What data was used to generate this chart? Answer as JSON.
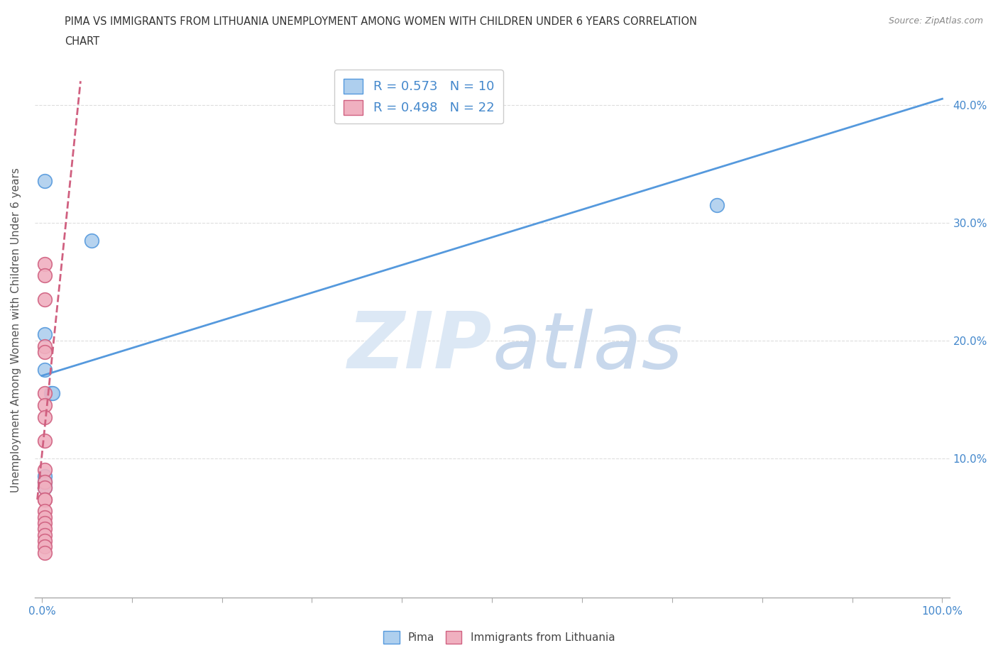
{
  "title_line1": "PIMA VS IMMIGRANTS FROM LITHUANIA UNEMPLOYMENT AMONG WOMEN WITH CHILDREN UNDER 6 YEARS CORRELATION",
  "title_line2": "CHART",
  "source": "Source: ZipAtlas.com",
  "ylabel": "Unemployment Among Women with Children Under 6 years",
  "watermark": "ZIPatlas",
  "pima_R": 0.573,
  "pima_N": 10,
  "lithuania_R": 0.498,
  "lithuania_N": 22,
  "pima_color": "#aecfee",
  "pima_line_color": "#5599dd",
  "lithuania_color": "#f0b0c0",
  "lithuania_line_color": "#d06080",
  "pima_scatter_x": [
    0.003,
    0.055,
    0.003,
    0.003,
    0.01,
    0.012,
    0.003,
    0.003,
    0.75,
    0.003
  ],
  "pima_scatter_y": [
    0.335,
    0.285,
    0.205,
    0.175,
    0.155,
    0.155,
    0.085,
    0.075,
    0.315,
    0.08
  ],
  "lithuania_scatter_x": [
    0.003,
    0.003,
    0.003,
    0.003,
    0.003,
    0.003,
    0.003,
    0.003,
    0.003,
    0.003,
    0.003,
    0.003,
    0.003,
    0.003,
    0.003,
    0.003,
    0.003,
    0.003,
    0.003,
    0.003,
    0.003,
    0.003
  ],
  "lithuania_scatter_y": [
    0.265,
    0.255,
    0.235,
    0.195,
    0.19,
    0.155,
    0.145,
    0.135,
    0.115,
    0.09,
    0.08,
    0.075,
    0.065,
    0.065,
    0.055,
    0.05,
    0.045,
    0.04,
    0.035,
    0.03,
    0.025,
    0.02
  ],
  "pima_line_x": [
    0.0,
    1.0
  ],
  "pima_line_y": [
    0.17,
    0.405
  ],
  "lithuania_line_x": [
    -0.005,
    0.043
  ],
  "lithuania_line_y": [
    0.065,
    0.42
  ],
  "xmin": -0.008,
  "xmax": 1.008,
  "ymin": -0.018,
  "ymax": 0.435,
  "xticks_left": [
    0.0
  ],
  "xticks_right": [
    1.0
  ],
  "xtick_label_left": "0.0%",
  "xtick_label_right": "100.0%",
  "yticks": [
    0.1,
    0.2,
    0.3,
    0.4
  ],
  "ytick_labels": [
    "10.0%",
    "20.0%",
    "30.0%",
    "40.0%"
  ],
  "background_color": "#ffffff",
  "grid_color": "#dddddd",
  "grid_linestyle": "--",
  "legend_pima_label": "Pima",
  "legend_lithuania_label": "Immigrants from Lithuania"
}
